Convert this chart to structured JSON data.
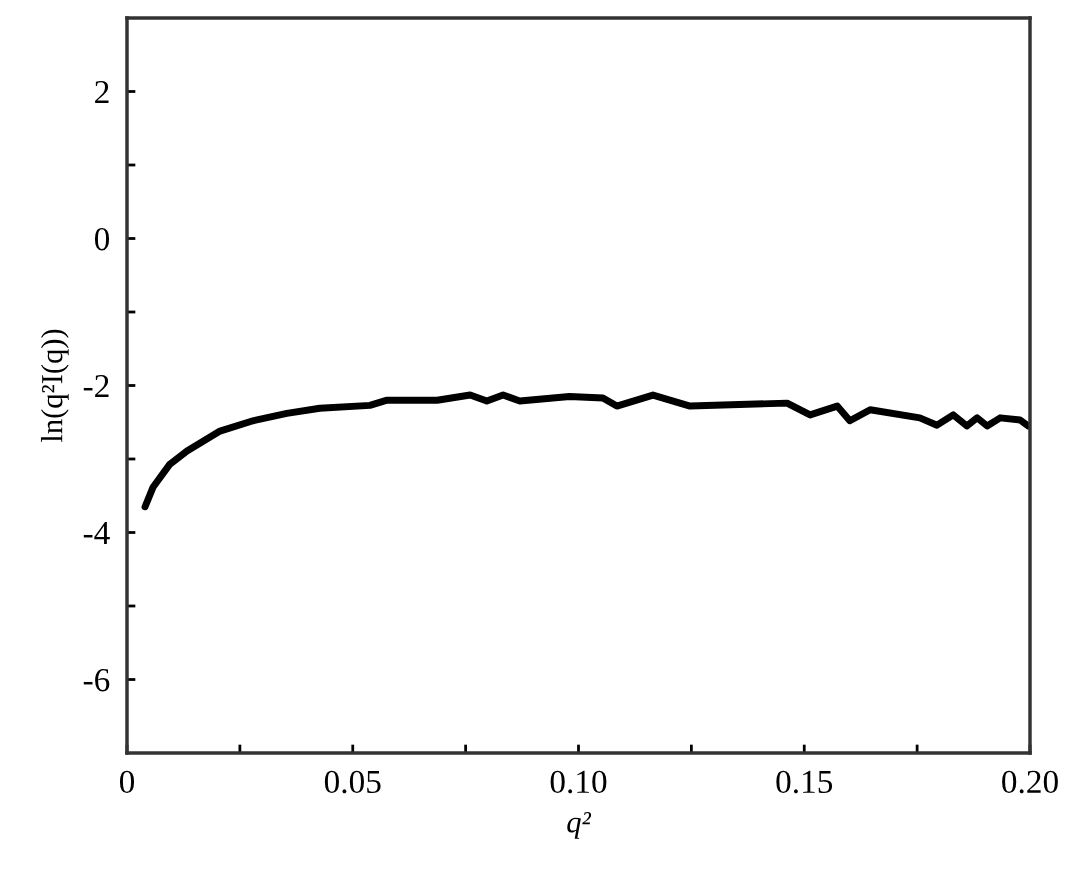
{
  "chart_data": {
    "type": "line",
    "xlabel": "q²",
    "ylabel": "ln(q²I(q))",
    "xlim": [
      0,
      0.2
    ],
    "ylim": [
      -7,
      3
    ],
    "xticks": [
      0,
      0.05,
      {
        "value": 0.1,
        "label": "0.10"
      },
      0.15,
      {
        "value": 0.2,
        "label": "0.20"
      },
      {
        "value": 0.025,
        "label": null
      },
      {
        "value": 0.075,
        "label": null
      },
      {
        "value": 0.125,
        "label": null
      },
      {
        "value": 0.175,
        "label": null
      }
    ],
    "yticks": [
      2,
      0,
      -2,
      -4,
      -6,
      {
        "value": 1,
        "label": null
      },
      {
        "value": -1,
        "label": null
      },
      {
        "value": -3,
        "label": null
      },
      {
        "value": -5,
        "label": null
      }
    ],
    "grid": false,
    "legend": false,
    "marker": "none",
    "line_style": "solid",
    "series": [
      {
        "color": "#000000",
        "x": [
          0.004,
          0.0058,
          0.0095,
          0.0133,
          0.0206,
          0.0279,
          0.0354,
          0.0427,
          0.0538,
          0.0576,
          0.0687,
          0.076,
          0.0797,
          0.0833,
          0.087,
          0.098,
          0.1054,
          0.1085,
          0.1165,
          0.1247,
          0.1462,
          0.1513,
          0.1573,
          0.1601,
          0.1646,
          0.1756,
          0.1794,
          0.183,
          0.186,
          0.1883,
          0.1905,
          0.1934,
          0.1978,
          0.1996
        ],
        "values": [
          -3.65,
          -3.38,
          -3.07,
          -2.89,
          -2.62,
          -2.48,
          -2.38,
          -2.31,
          -2.27,
          -2.2,
          -2.2,
          -2.13,
          -2.21,
          -2.13,
          -2.21,
          -2.15,
          -2.17,
          -2.28,
          -2.13,
          -2.28,
          -2.24,
          -2.4,
          -2.28,
          -2.48,
          -2.33,
          -2.44,
          -2.54,
          -2.4,
          -2.55,
          -2.44,
          -2.55,
          -2.44,
          -2.47,
          -2.55
        ]
      }
    ]
  }
}
